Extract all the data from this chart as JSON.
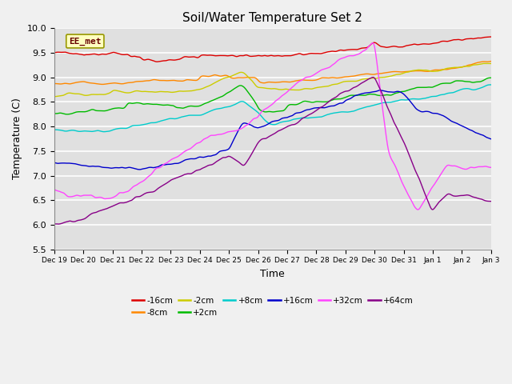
{
  "title": "Soil/Water Temperature Set 2",
  "xlabel": "Time",
  "ylabel": "Temperature (C)",
  "ylim": [
    5.5,
    10.0
  ],
  "annotation": "EE_met",
  "fig_facecolor": "#f0f0f0",
  "ax_facecolor": "#e0e0e0",
  "series": [
    {
      "label": "-16cm",
      "color": "#dd0000"
    },
    {
      "label": "-8cm",
      "color": "#ff8800"
    },
    {
      "label": "-2cm",
      "color": "#cccc00"
    },
    {
      "label": "+2cm",
      "color": "#00bb00"
    },
    {
      "label": "+8cm",
      "color": "#00cccc"
    },
    {
      "label": "+16cm",
      "color": "#0000cc"
    },
    {
      "label": "+32cm",
      "color": "#ff44ff"
    },
    {
      "label": "+64cm",
      "color": "#880088"
    }
  ],
  "tick_labels": [
    "Dec 19",
    "Dec 20",
    "Dec 21",
    "Dec 22",
    "Dec 23",
    "Dec 24",
    "Dec 25",
    "Dec 26",
    "Dec 27",
    "Dec 28",
    "Dec 29",
    "Dec 30",
    "Dec 31",
    "Jan 1",
    "Jan 2",
    "Jan 3"
  ]
}
